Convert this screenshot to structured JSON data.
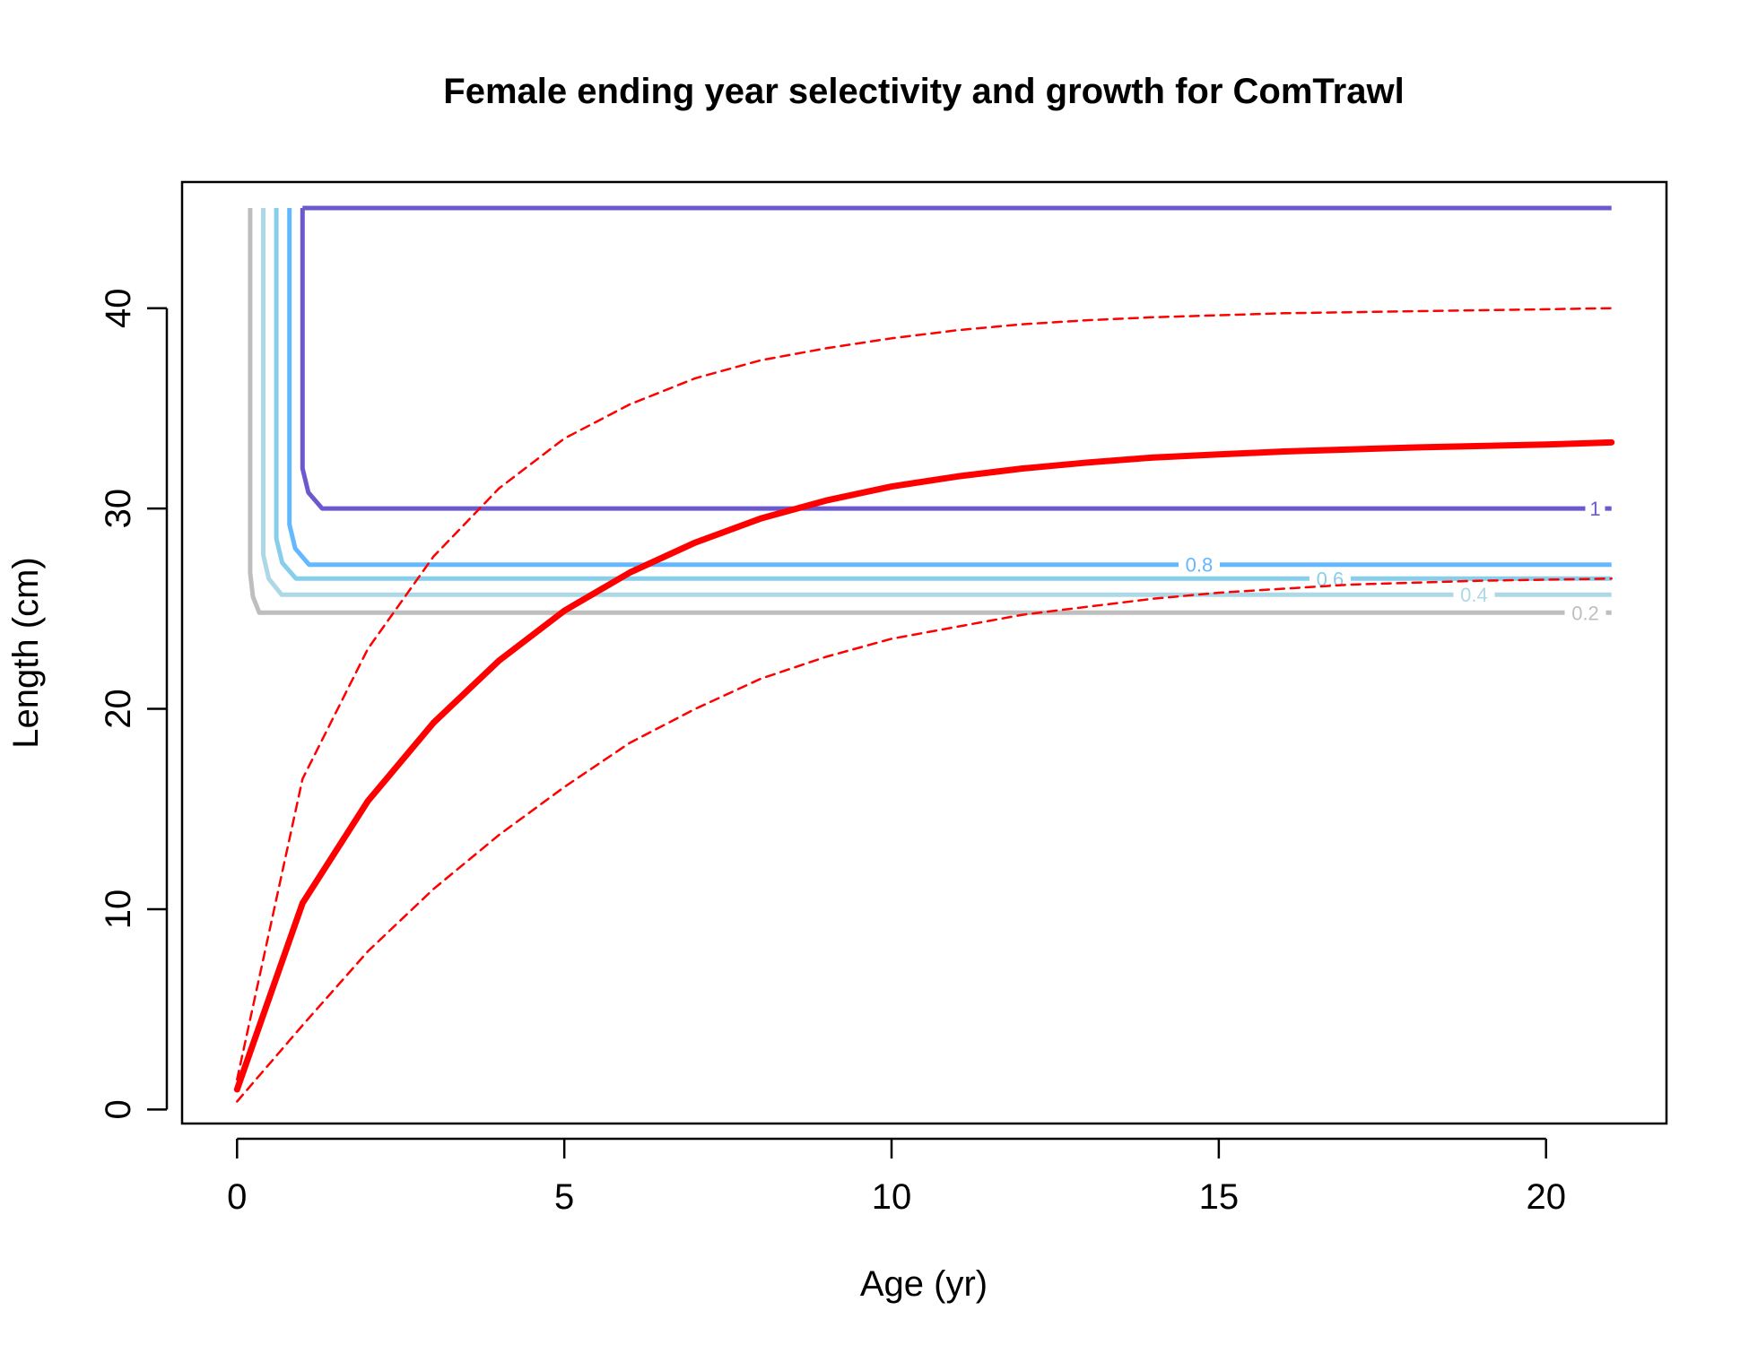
{
  "chart_data": {
    "type": "line",
    "title": "Female ending year selectivity and growth for ComTrawl",
    "xlabel": "Age (yr)",
    "ylabel": "Length (cm)",
    "xlim": [
      -0.84,
      21.84
    ],
    "ylim": [
      -0.7,
      46.3
    ],
    "xticks": [
      0,
      5,
      10,
      15,
      20
    ],
    "yticks": [
      0,
      10,
      20,
      30,
      40
    ],
    "colors": {
      "growth": "#ff0000",
      "contour_1": "#6a5acd",
      "contour_0.8": "#63b8ff",
      "contour_0.6": "#87ceeb",
      "contour_0.4": "#add8e6",
      "contour_0.2": "#bebebe"
    },
    "growth_mean": {
      "name": "",
      "x": [
        0,
        1,
        2,
        3,
        4,
        5,
        6,
        7,
        8,
        9,
        10,
        11,
        12,
        13,
        14,
        15,
        16,
        17,
        18,
        19,
        20,
        21
      ],
      "y": [
        1.0,
        10.3,
        15.4,
        19.3,
        22.4,
        24.9,
        26.8,
        28.3,
        29.5,
        30.4,
        31.1,
        31.6,
        32.0,
        32.3,
        32.55,
        32.7,
        32.85,
        32.95,
        33.05,
        33.12,
        33.2,
        33.3
      ]
    },
    "growth_upper": {
      "name": "",
      "x": [
        0,
        1,
        2,
        3,
        4,
        5,
        6,
        7,
        8,
        9,
        10,
        11,
        12,
        13,
        14,
        15,
        16,
        17,
        18,
        19,
        20,
        21
      ],
      "y": [
        1.5,
        16.5,
        23.0,
        27.6,
        31.0,
        33.5,
        35.2,
        36.5,
        37.4,
        38.0,
        38.5,
        38.9,
        39.2,
        39.4,
        39.55,
        39.65,
        39.75,
        39.8,
        39.85,
        39.9,
        39.95,
        40.0
      ]
    },
    "growth_lower": {
      "name": "",
      "x": [
        0,
        1,
        2,
        3,
        4,
        5,
        6,
        7,
        8,
        9,
        10,
        11,
        12,
        13,
        14,
        15,
        16,
        17,
        18,
        19,
        20,
        21
      ],
      "y": [
        0.4,
        4.2,
        7.9,
        11.0,
        13.7,
        16.1,
        18.3,
        20.0,
        21.5,
        22.6,
        23.5,
        24.1,
        24.7,
        25.1,
        25.5,
        25.8,
        26.0,
        26.2,
        26.3,
        26.4,
        26.45,
        26.5
      ]
    },
    "selectivity_contours": [
      {
        "label": "1",
        "corner_x": 1.0,
        "plateau": 30.0,
        "top": 45.0,
        "label_x": 20.75
      },
      {
        "label": "0.8",
        "corner_x": 0.8,
        "plateau": 27.2,
        "top": 45.0,
        "label_x": 14.7
      },
      {
        "label": "0.6",
        "corner_x": 0.6,
        "plateau": 26.5,
        "top": 45.0,
        "label_x": 16.7
      },
      {
        "label": "0.4",
        "corner_x": 0.4,
        "plateau": 25.7,
        "top": 45.0,
        "label_x": 18.9
      },
      {
        "label": "0.2",
        "corner_x": 0.2,
        "plateau": 24.8,
        "top": 45.0,
        "label_x": 20.6
      }
    ]
  }
}
